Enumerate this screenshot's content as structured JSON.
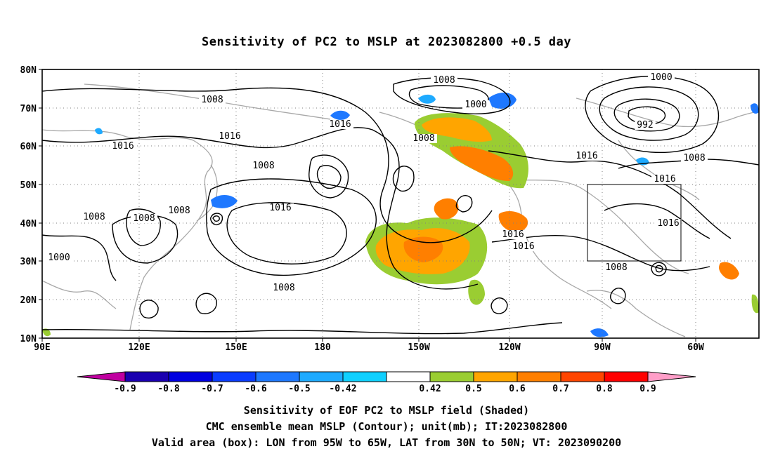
{
  "title": "Sensitivity of PC2 to MSLP at 2023082800 +0.5 day",
  "lat_labels": [
    "80N",
    "70N",
    "60N",
    "50N",
    "40N",
    "30N",
    "20N",
    "10N"
  ],
  "lon_labels": [
    "90E",
    "120E",
    "150E",
    "180",
    "150W",
    "120W",
    "90W",
    "60W"
  ],
  "contour_labels": [
    "1008",
    "1016",
    "1000",
    "992",
    "1008",
    "1016",
    "1008",
    "1016",
    "1008",
    "1000",
    "1016",
    "1016",
    "1008",
    "1008",
    "1016",
    "1008",
    "1016",
    "1016",
    "1016",
    "1008",
    "1008",
    "1008",
    "1000"
  ],
  "colorbar": {
    "labels": [
      "-0.9",
      "-0.8",
      "-0.7",
      "-0.6",
      "-0.5",
      "-0.42",
      "0.42",
      "0.5",
      "0.6",
      "0.7",
      "0.8",
      "0.9"
    ],
    "colors": [
      "#c000a0",
      "#1a00b0",
      "#0000e0",
      "#0a3cff",
      "#1e78ff",
      "#1eaaff",
      "#10d0ff",
      "#ffffff",
      "#9acd32",
      "#ffa500",
      "#ff7f00",
      "#ff4500",
      "#ff0000",
      "#ff9ec8"
    ]
  },
  "captions": {
    "line1": "Sensitivity of EOF PC2 to MSLP field (Shaded)",
    "line2": "CMC ensemble mean MSLP (Contour); unit(mb); IT:2023082800",
    "line3": "Valid area (box): LON from 95W to 65W, LAT from 30N to 50N; VT: 2023090200"
  }
}
